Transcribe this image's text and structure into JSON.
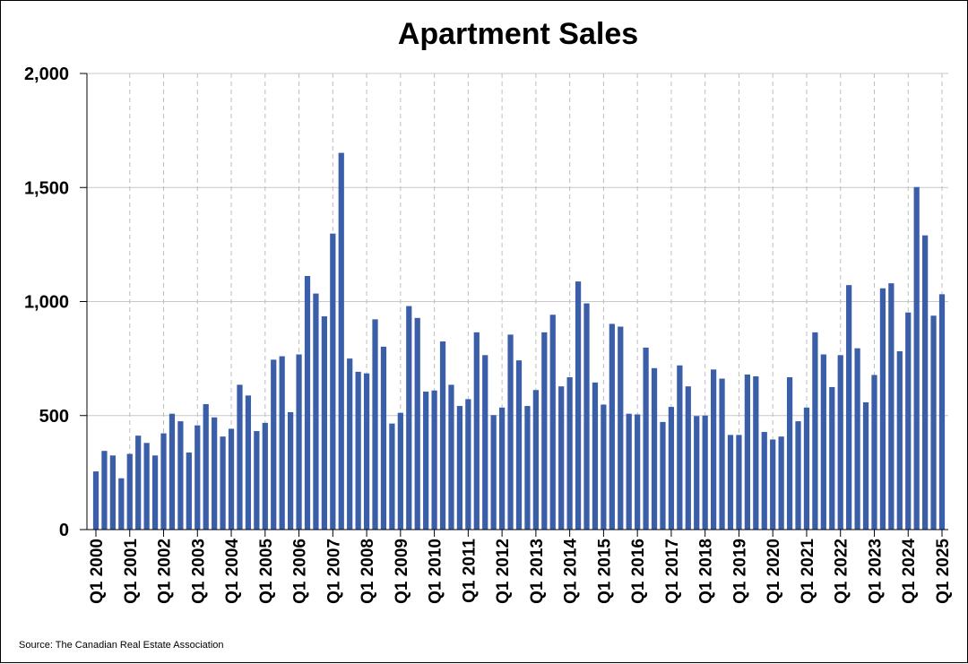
{
  "chart_data": {
    "type": "bar",
    "title": "Apartment Sales",
    "xlabel": "",
    "ylabel": "",
    "ylim": [
      0,
      2000
    ],
    "yticks": [
      0,
      500,
      1000,
      1500,
      2000
    ],
    "ytick_labels": [
      "0",
      "500",
      "1,000",
      "1,500",
      "2,000"
    ],
    "grid": "horizontal solid, vertical dashed at Q1",
    "bar_color": "#3a5ea8",
    "x_tick_labels": [
      "Q1 2000",
      "Q1 2001",
      "Q1 2002",
      "Q1 2003",
      "Q1 2004",
      "Q1 2005",
      "Q1 2006",
      "Q1 2007",
      "Q1 2008",
      "Q1 2009",
      "Q1 2010",
      "Q1 2011",
      "Q1 2012",
      "Q1 2013",
      "Q1 2014",
      "Q1 2015",
      "Q1 2016",
      "Q1 2017",
      "Q1 2018",
      "Q1 2019",
      "Q1 2020",
      "Q1 2021",
      "Q1 2022",
      "Q1 2023",
      "Q1 2024",
      "Q1 2025"
    ],
    "series": [
      {
        "name": "Apartment Sales",
        "values": [
          255,
          345,
          325,
          225,
          332,
          412,
          380,
          325,
          422,
          508,
          475,
          338,
          457,
          550,
          492,
          408,
          442,
          635,
          588,
          432,
          468,
          745,
          760,
          515,
          768,
          1112,
          1035,
          935,
          1298,
          1652,
          750,
          692,
          685,
          922,
          802,
          465,
          512,
          980,
          928,
          605,
          610,
          825,
          635,
          542,
          572,
          865,
          765,
          502,
          535,
          855,
          742,
          542,
          612,
          865,
          942,
          628,
          668,
          1088,
          992,
          645,
          548,
          902,
          890,
          508,
          505,
          798,
          708,
          472,
          538,
          720,
          628,
          498,
          500,
          702,
          662,
          415,
          415,
          680,
          672,
          428,
          395,
          408,
          668,
          475,
          535,
          865,
          768,
          625,
          765,
          1072,
          795,
          558,
          678,
          1058,
          1080,
          782,
          952,
          1502,
          1290,
          938,
          1032
        ]
      }
    ],
    "source": "Source: The Canadian Real Estate Association"
  }
}
